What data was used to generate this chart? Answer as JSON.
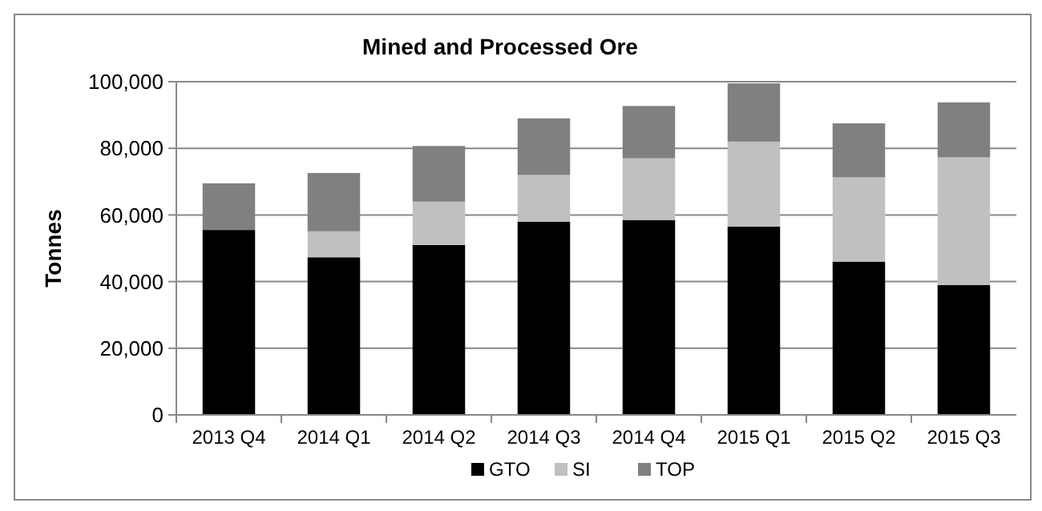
{
  "chart_data": {
    "type": "bar",
    "stacked": true,
    "title": "Mined and Processed Ore",
    "ylabel": "Tonnes",
    "categories": [
      "2013 Q4",
      "2014 Q1",
      "2014 Q2",
      "2014 Q3",
      "2014 Q4",
      "2015 Q1",
      "2015 Q2",
      "2015 Q3"
    ],
    "series": [
      {
        "name": "GTO",
        "color": "#000000",
        "values": [
          55500,
          47300,
          51000,
          58000,
          58500,
          56500,
          46000,
          39000
        ]
      },
      {
        "name": "SI",
        "color": "#c0c0c0",
        "values": [
          0,
          7800,
          13000,
          14000,
          18500,
          25500,
          25300,
          38300
        ]
      },
      {
        "name": "TOP",
        "color": "#808080",
        "values": [
          14000,
          17500,
          16700,
          17000,
          15700,
          17500,
          16200,
          16500
        ]
      }
    ],
    "ylim": [
      0,
      100000
    ],
    "yticks": [
      {
        "value": 0,
        "label": "0"
      },
      {
        "value": 20000,
        "label": "20,000"
      },
      {
        "value": 40000,
        "label": "40,000"
      },
      {
        "value": 60000,
        "label": "60,000"
      },
      {
        "value": 80000,
        "label": "80,000"
      },
      {
        "value": 100000,
        "label": "100,000"
      }
    ],
    "grid": "y",
    "legend": "bottom"
  }
}
